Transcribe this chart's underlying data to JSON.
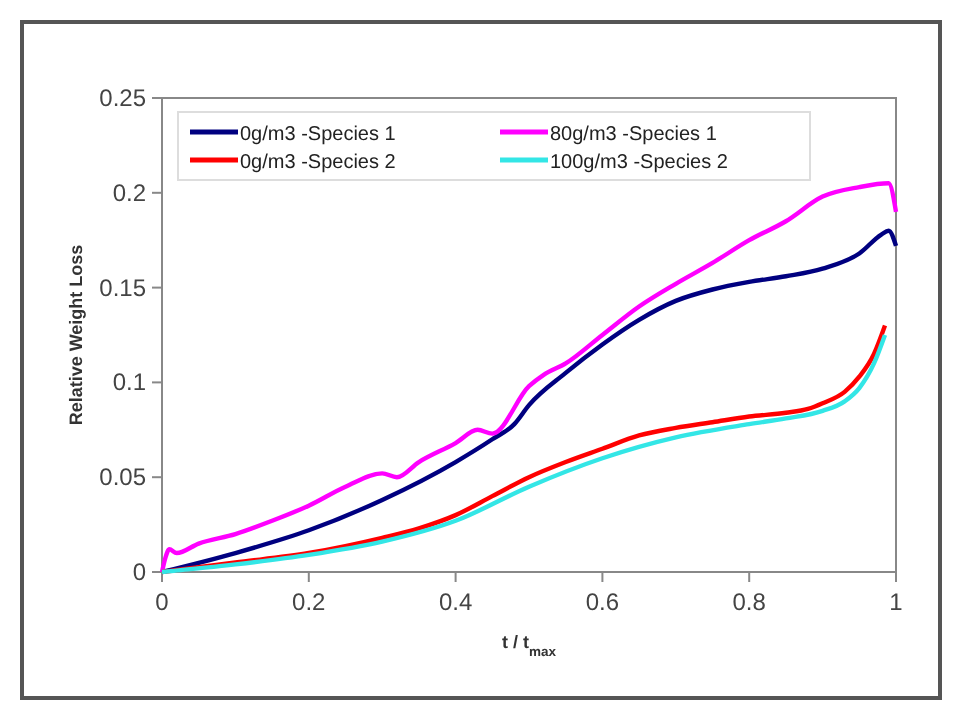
{
  "chart_data": {
    "type": "line",
    "xlabel": "t / t$_{max}$",
    "ylabel": "Relative Weight Loss",
    "xlim": [
      0,
      1
    ],
    "ylim": [
      0,
      0.25
    ],
    "xticks": [
      0,
      0.2,
      0.4,
      0.6,
      0.8,
      1
    ],
    "yticks": [
      0,
      0.05,
      0.1,
      0.15,
      0.2,
      0.25
    ],
    "legend": "top",
    "grid": false,
    "marker": "none",
    "line_style": "solid",
    "series": [
      {
        "name": "0g/m3 -Species 1",
        "color": "#000080",
        "x": [
          0,
          0.1,
          0.2,
          0.3,
          0.4,
          0.45,
          0.48,
          0.5,
          0.55,
          0.6,
          0.65,
          0.7,
          0.75,
          0.8,
          0.85,
          0.9,
          0.95,
          0.98,
          0.99,
          1
        ],
        "values": [
          0,
          0.01,
          0.022,
          0.038,
          0.058,
          0.07,
          0.078,
          0.088,
          0.105,
          0.12,
          0.133,
          0.143,
          0.149,
          0.153,
          0.156,
          0.16,
          0.168,
          0.178,
          0.18,
          0.172
        ]
      },
      {
        "name": "80g/m3 -Species 1",
        "color": "#ff00ff",
        "x": [
          0,
          0.005,
          0.01,
          0.02,
          0.05,
          0.1,
          0.15,
          0.2,
          0.25,
          0.3,
          0.32,
          0.35,
          0.4,
          0.43,
          0.45,
          0.5,
          0.52,
          0.55,
          0.6,
          0.65,
          0.7,
          0.75,
          0.8,
          0.85,
          0.9,
          0.95,
          0.99,
          1
        ],
        "values": [
          0,
          0.008,
          0.012,
          0.01,
          0.015,
          0.02,
          0.027,
          0.035,
          0.045,
          0.052,
          0.05,
          0.058,
          0.068,
          0.075,
          0.073,
          0.098,
          0.104,
          0.11,
          0.125,
          0.14,
          0.152,
          0.163,
          0.175,
          0.185,
          0.198,
          0.203,
          0.205,
          0.19
        ]
      },
      {
        "name": "0g/m3 -Species 2",
        "color": "#ff0000",
        "x": [
          0,
          0.1,
          0.2,
          0.3,
          0.35,
          0.4,
          0.45,
          0.5,
          0.55,
          0.6,
          0.65,
          0.7,
          0.75,
          0.8,
          0.85,
          0.88,
          0.9,
          0.93,
          0.95,
          0.97,
          0.985
        ],
        "values": [
          0,
          0.005,
          0.01,
          0.018,
          0.023,
          0.03,
          0.04,
          0.05,
          0.058,
          0.065,
          0.072,
          0.076,
          0.079,
          0.082,
          0.084,
          0.086,
          0.089,
          0.095,
          0.103,
          0.115,
          0.13
        ]
      },
      {
        "name": "100g/m3 -Species 2",
        "color": "#33e6e6",
        "x": [
          0,
          0.1,
          0.2,
          0.3,
          0.4,
          0.5,
          0.6,
          0.7,
          0.8,
          0.85,
          0.9,
          0.93,
          0.95,
          0.97,
          0.985
        ],
        "values": [
          0,
          0.004,
          0.009,
          0.016,
          0.027,
          0.045,
          0.06,
          0.071,
          0.078,
          0.081,
          0.085,
          0.09,
          0.097,
          0.11,
          0.125
        ]
      }
    ]
  }
}
